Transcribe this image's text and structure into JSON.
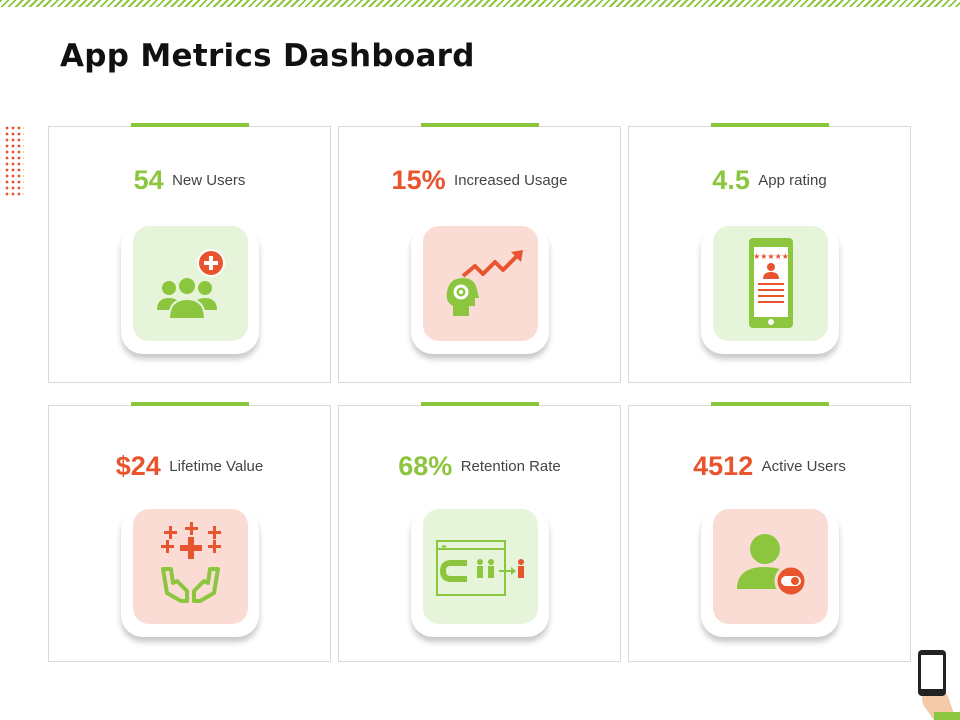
{
  "title": "App Metrics Dashboard",
  "colors": {
    "accent_green": "#8cc63f",
    "accent_orange": "#e8542d",
    "tile_green": "#e6f4da",
    "tile_pink": "#fbdcd4"
  },
  "cards": [
    {
      "value": "54",
      "label": "New Users",
      "value_color": "green",
      "icon": "users-plus-icon"
    },
    {
      "value": "15%",
      "label": "Increased Usage",
      "value_color": "orange",
      "icon": "growth-head-icon"
    },
    {
      "value": "4.5",
      "label": "App rating",
      "value_color": "green",
      "icon": "phone-rating-icon"
    },
    {
      "value": "$24",
      "label": "Lifetime Value",
      "value_color": "orange",
      "icon": "hands-plus-icon"
    },
    {
      "value": "68%",
      "label": "Retention Rate",
      "value_color": "green",
      "icon": "magnet-retention-icon"
    },
    {
      "value": "4512",
      "label": "Active Users",
      "value_color": "orange",
      "icon": "active-user-icon"
    }
  ]
}
